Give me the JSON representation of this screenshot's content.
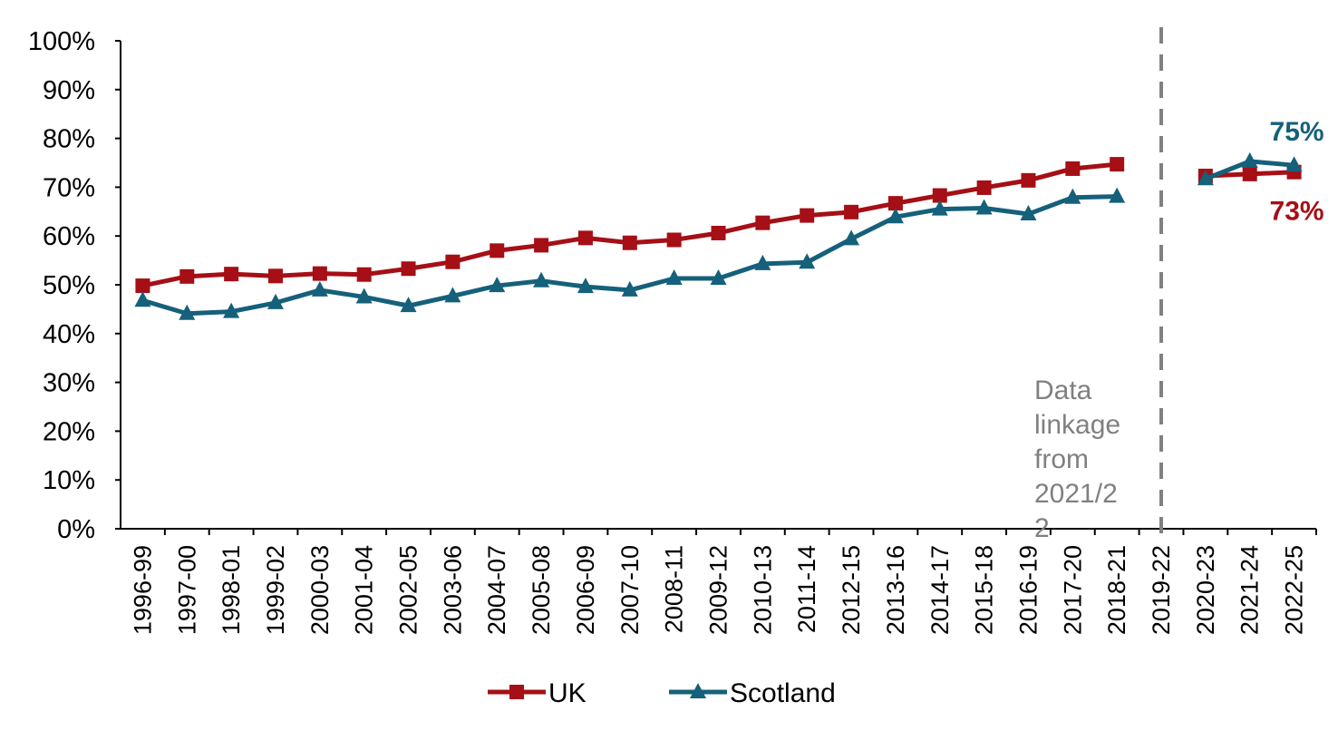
{
  "chart_data": {
    "type": "line",
    "categories": [
      "1996-99",
      "1997-00",
      "1998-01",
      "1999-02",
      "2000-03",
      "2001-04",
      "2002-05",
      "2003-06",
      "2004-07",
      "2005-08",
      "2006-09",
      "2007-10",
      "2008-11",
      "2009-12",
      "2010-13",
      "2011-14",
      "2012-15",
      "2013-16",
      "2014-17",
      "2015-18",
      "2016-19",
      "2017-20",
      "2018-21",
      "2019-22",
      "2020-23",
      "2021-24",
      "2022-25"
    ],
    "series": [
      {
        "name": "UK",
        "color": "#A50F15",
        "marker": "square",
        "values": [
          49.8,
          51.7,
          52.2,
          51.8,
          52.3,
          52.1,
          53.3,
          54.7,
          57.0,
          58.1,
          59.6,
          58.6,
          59.2,
          60.6,
          62.7,
          64.2,
          64.9,
          66.7,
          68.3,
          69.9,
          71.4,
          73.8,
          74.7,
          null,
          72.3,
          72.7,
          73.1
        ],
        "label": {
          "text": "73%",
          "index": 26
        }
      },
      {
        "name": "Scotland",
        "color": "#15607A",
        "marker": "triangle",
        "values": [
          46.8,
          44.1,
          44.5,
          46.3,
          48.9,
          47.5,
          45.7,
          47.7,
          49.8,
          50.8,
          49.6,
          48.9,
          51.3,
          51.3,
          54.3,
          54.6,
          59.4,
          63.9,
          65.5,
          65.7,
          64.5,
          67.9,
          68.1,
          null,
          71.7,
          75.3,
          74.5
        ],
        "label": {
          "text": "75%",
          "index": 26
        }
      }
    ],
    "ylim": [
      0,
      100
    ],
    "yticks": [
      "0%",
      "10%",
      "20%",
      "30%",
      "40%",
      "50%",
      "60%",
      "70%",
      "80%",
      "90%",
      "100%"
    ],
    "divider": {
      "after_category": "2019-22",
      "style": "dashed",
      "color": "#808080"
    },
    "annotation": [
      "Data",
      "linkage",
      "from",
      "2021/2",
      "2"
    ],
    "legend": "bottom",
    "title": "",
    "xlabel": "",
    "ylabel": ""
  }
}
